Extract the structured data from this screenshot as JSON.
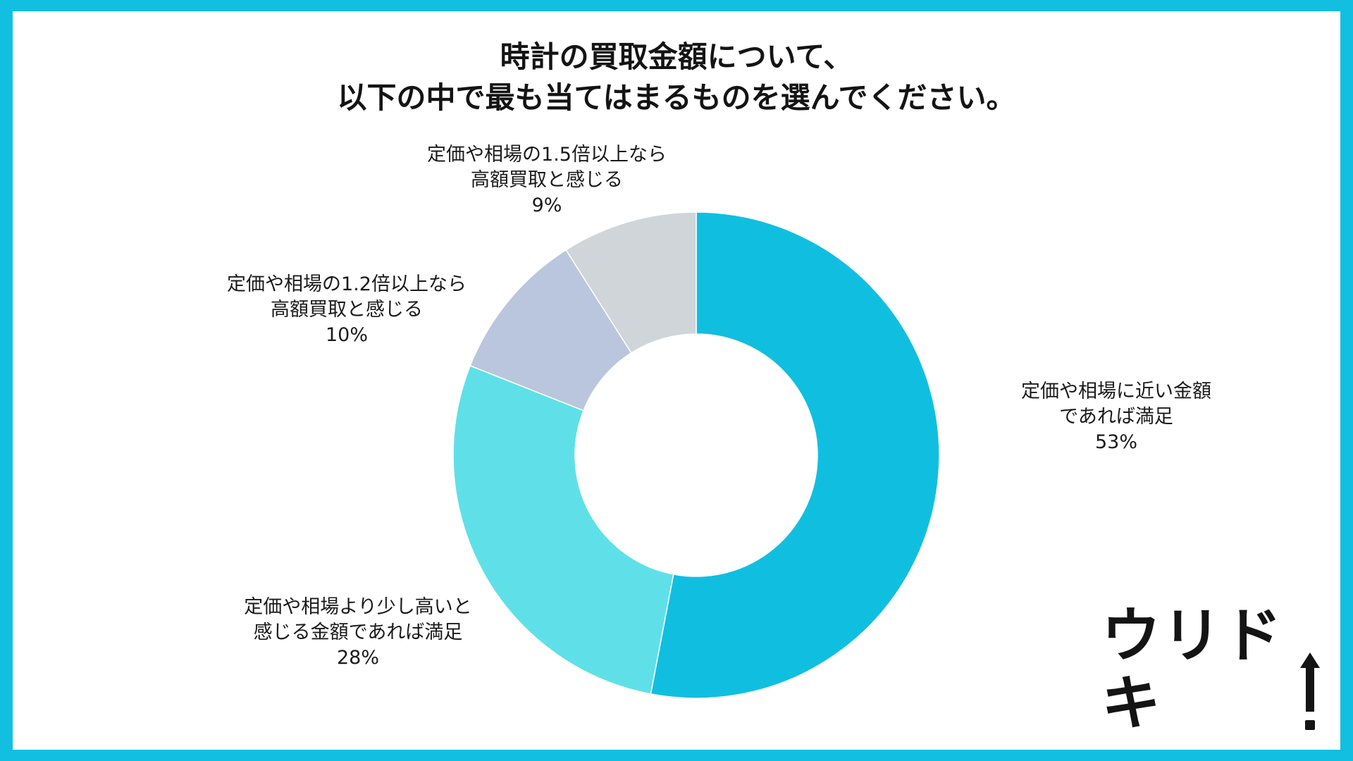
{
  "colors": {
    "border": "#12bfe0",
    "seg_53": "#10bfe0",
    "seg_28": "#5fe0e8",
    "seg_10": "#b9c6dd",
    "seg_9": "#cfd5d9"
  },
  "logo": {
    "text": "ウリドキ",
    "icon": "up-arrow-icon"
  },
  "chart_data": {
    "type": "pie",
    "subtype": "donut",
    "title": [
      "時計の買取金額について、",
      "以下の中で最も当てはまるものを選んでください。"
    ],
    "legend": "none",
    "start_angle": "top, clockwise",
    "slices": [
      {
        "label_lines": [
          "定価や相場に近い金額",
          "であれば満足"
        ],
        "value": 53,
        "value_label": "53%",
        "color": "#10bfe0"
      },
      {
        "label_lines": [
          "定価や相場より少し高いと",
          "感じる金額であれば満足"
        ],
        "value": 28,
        "value_label": "28%",
        "color": "#5fe0e8"
      },
      {
        "label_lines": [
          "定価や相場の1.2倍以上なら",
          "高額買取と感じる"
        ],
        "value": 10,
        "value_label": "10%",
        "color": "#b9c6dd"
      },
      {
        "label_lines": [
          "定価や相場の1.5倍以上なら",
          "高額買取と感じる"
        ],
        "value": 9,
        "value_label": "9%",
        "color": "#cfd5d9"
      }
    ]
  }
}
